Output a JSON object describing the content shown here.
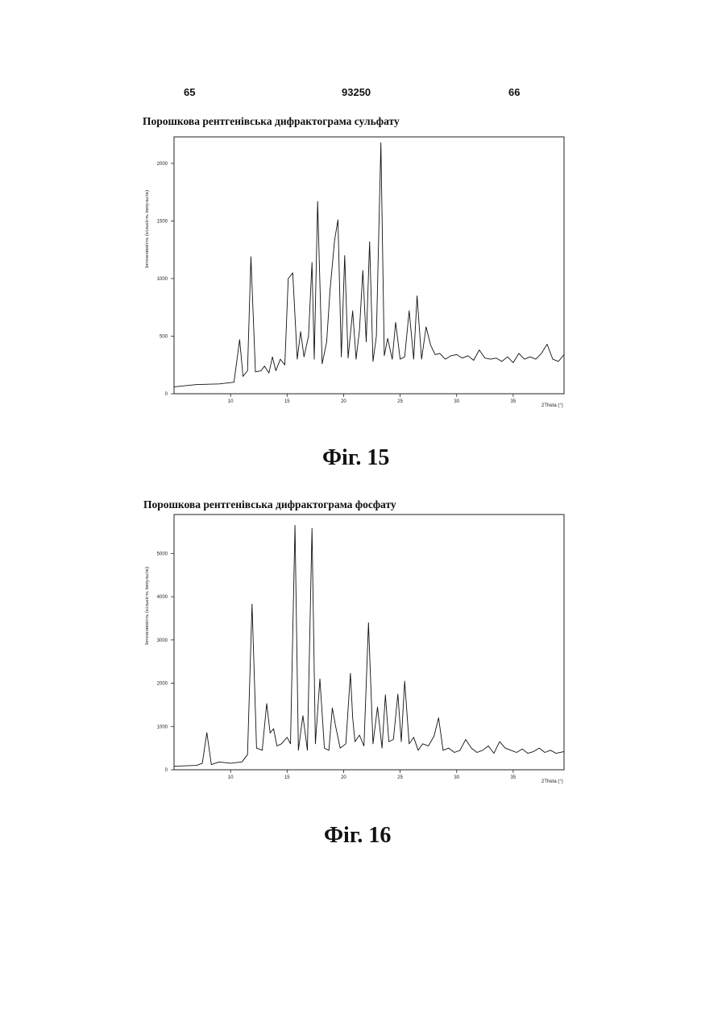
{
  "header": {
    "left": "65",
    "center": "93250",
    "right": "66"
  },
  "figures": [
    {
      "title": "Порошкова рентгенівська дифрактограма сульфату",
      "caption": "Фіг. 15"
    },
    {
      "title": "Порошкова рентгенівська дифрактограма фосфату",
      "caption": "Фіг. 16"
    }
  ],
  "chart_data": [
    {
      "type": "line",
      "title": "Порошкова рентгенівська дифрактограма сульфату",
      "xlabel": "2Theta (°)",
      "ylabel": "Інтенсивність (кількість імпульсів)",
      "xlim": [
        5,
        39.5
      ],
      "ylim": [
        0,
        2230
      ],
      "xticks": [
        10,
        15,
        20,
        25,
        30,
        35
      ],
      "yticks": [
        0,
        500,
        1000,
        1500,
        2000
      ],
      "grid": false,
      "series": [
        {
          "x": [
            5.0,
            7.0,
            9.0,
            10.3,
            10.8,
            11.1,
            11.5,
            11.8,
            12.2,
            12.7,
            13.0,
            13.4,
            13.7,
            14.0,
            14.4,
            14.8,
            15.1,
            15.5,
            15.9,
            16.2,
            16.5,
            16.9,
            17.2,
            17.4,
            17.7,
            18.1,
            18.5,
            18.8,
            19.2,
            19.5,
            19.8,
            20.1,
            20.4,
            20.8,
            21.1,
            21.4,
            21.7,
            22.0,
            22.3,
            22.6,
            22.9,
            23.3,
            23.6,
            23.9,
            24.3,
            24.6,
            25.0,
            25.4,
            25.8,
            26.2,
            26.5,
            26.9,
            27.3,
            27.7,
            28.1,
            28.5,
            29.0,
            29.5,
            30.0,
            30.5,
            31.0,
            31.5,
            32.0,
            32.5,
            33.0,
            33.5,
            34.0,
            34.5,
            35.0,
            35.5,
            36.0,
            36.5,
            37.0,
            37.5,
            38.0,
            38.5,
            39.0,
            39.5
          ],
          "y": [
            60,
            80,
            85,
            100,
            470,
            150,
            200,
            1190,
            190,
            200,
            240,
            180,
            320,
            200,
            300,
            250,
            1000,
            1050,
            300,
            540,
            320,
            500,
            1140,
            300,
            1670,
            260,
            450,
            900,
            1330,
            1510,
            320,
            1200,
            310,
            720,
            300,
            550,
            1070,
            450,
            1320,
            280,
            500,
            2180,
            330,
            480,
            300,
            620,
            300,
            320,
            720,
            300,
            850,
            300,
            580,
            420,
            340,
            350,
            300,
            330,
            340,
            310,
            330,
            290,
            380,
            310,
            300,
            310,
            280,
            320,
            270,
            350,
            300,
            320,
            300,
            350,
            430,
            300,
            280,
            340
          ]
        }
      ]
    },
    {
      "type": "line",
      "title": "Порошкова рентгенівська дифрактограма фосфату",
      "xlabel": "2Theta (°)",
      "ylabel": "Інтенсивність (кількість імпульсів)",
      "xlim": [
        5,
        39.5
      ],
      "ylim": [
        0,
        5900
      ],
      "xticks": [
        10,
        15,
        20,
        25,
        30,
        35
      ],
      "yticks": [
        0,
        1000,
        2000,
        3000,
        4000,
        5000
      ],
      "grid": false,
      "series": [
        {
          "x": [
            5.0,
            7.0,
            7.5,
            7.9,
            8.3,
            9.0,
            10.0,
            11.0,
            11.5,
            11.9,
            12.3,
            12.8,
            13.2,
            13.5,
            13.8,
            14.1,
            14.5,
            15.0,
            15.3,
            15.7,
            16.0,
            16.4,
            16.8,
            17.2,
            17.5,
            17.9,
            18.3,
            18.7,
            19.0,
            19.3,
            19.7,
            20.2,
            20.6,
            20.8,
            21.0,
            21.4,
            21.8,
            22.2,
            22.6,
            23.0,
            23.4,
            23.7,
            24.0,
            24.4,
            24.8,
            25.1,
            25.4,
            25.8,
            26.2,
            26.6,
            27.0,
            27.5,
            28.0,
            28.4,
            28.8,
            29.3,
            29.8,
            30.3,
            30.8,
            31.3,
            31.8,
            32.3,
            32.8,
            33.3,
            33.8,
            34.3,
            34.8,
            35.3,
            35.8,
            36.3,
            36.8,
            37.3,
            37.8,
            38.3,
            38.8,
            39.5
          ],
          "y": [
            80,
            100,
            150,
            860,
            120,
            180,
            150,
            180,
            350,
            3830,
            500,
            450,
            1530,
            850,
            950,
            550,
            600,
            750,
            600,
            5650,
            450,
            1250,
            450,
            5580,
            600,
            2100,
            500,
            450,
            1430,
            1000,
            500,
            600,
            2230,
            1200,
            650,
            800,
            550,
            3400,
            600,
            1450,
            500,
            1730,
            650,
            700,
            1750,
            650,
            2050,
            600,
            750,
            450,
            600,
            550,
            780,
            1200,
            450,
            500,
            400,
            450,
            700,
            500,
            400,
            450,
            550,
            380,
            650,
            500,
            450,
            400,
            480,
            380,
            420,
            500,
            400,
            450,
            380,
            420
          ]
        }
      ]
    }
  ]
}
